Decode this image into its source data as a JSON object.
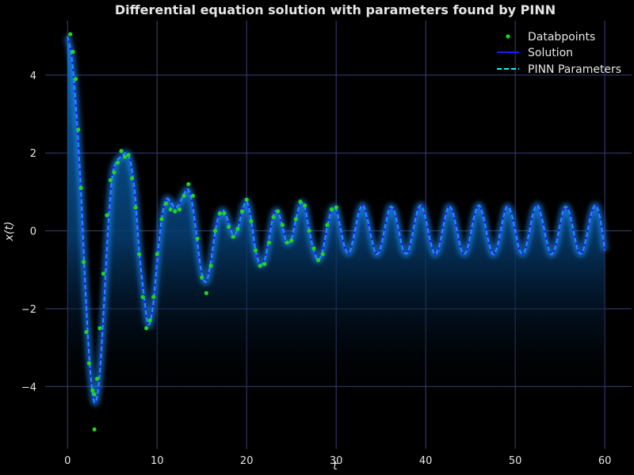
{
  "chart_data": {
    "type": "line",
    "title": "Differential equation solution with parameters found by PINN",
    "xlabel": "t",
    "ylabel": "x(t)",
    "xlim": [
      -2.5,
      63
    ],
    "ylim": [
      -5.6,
      5.4
    ],
    "xticks": [
      0,
      10,
      20,
      30,
      40,
      50,
      60
    ],
    "yticks": [
      -4,
      -2,
      0,
      2,
      4
    ],
    "xtick_labels": [
      "0",
      "10",
      "20",
      "30",
      "40",
      "50",
      "60"
    ],
    "ytick_labels": [
      "−4",
      "−2",
      "0",
      "2",
      "4"
    ],
    "grid": true,
    "legend_position": "top-right",
    "legend": [
      {
        "label": "Databpoints",
        "marker": "dot",
        "color": "#1ed61e"
      },
      {
        "label": "Solution",
        "style": "solid",
        "color": "#1a1aff"
      },
      {
        "label": "PINN Parameters",
        "style": "dashed",
        "color": "#00ffff"
      }
    ],
    "colors": {
      "background": "#000000",
      "grid": "#3a3f7a",
      "solution_glow": "#1e90ff",
      "pinn_dashed": "#1e90ff",
      "fill_top": "#0a5aa0",
      "fill_bottom": "#000000",
      "datapoints": "#1ed61e"
    },
    "series": [
      {
        "name": "Solution",
        "x": [
          0.0,
          0.5,
          1.0,
          1.5,
          2.0,
          2.5,
          3.0,
          3.5,
          4.0,
          4.5,
          5.0,
          5.5,
          6.0,
          6.5,
          7.0,
          7.5,
          8.0,
          8.5,
          9.0,
          9.5,
          10.0,
          10.5,
          11.0,
          11.5,
          12.0,
          12.5,
          13.0,
          13.5,
          14.0,
          14.5,
          15.0,
          15.5,
          16.0,
          16.5,
          17.0,
          17.5,
          18.0,
          18.5,
          19.0,
          19.5,
          20.0,
          20.5,
          21.0,
          21.5,
          22.0,
          22.5,
          23.0,
          23.5,
          24.0,
          24.5,
          25.0,
          25.5,
          26.0,
          26.5,
          27.0,
          27.5,
          28.0,
          28.5,
          29.0,
          29.5,
          30.0,
          30.5,
          31.0,
          31.5,
          32.0,
          32.5,
          33.0,
          33.5,
          34.0,
          34.5,
          35.0,
          35.5,
          36.0,
          36.5,
          37.0,
          37.5,
          38.0,
          38.5,
          39.0,
          39.5,
          40.0,
          40.5,
          41.0,
          41.5,
          42.0,
          42.5,
          43.0,
          43.5,
          44.0,
          44.5,
          45.0,
          45.5,
          46.0,
          46.5,
          47.0,
          47.5,
          48.0,
          48.5,
          49.0,
          49.5,
          50.0,
          50.5,
          51.0,
          51.5,
          52.0,
          52.5,
          53.0,
          53.5,
          54.0,
          54.5,
          55.0,
          55.5,
          56.0,
          56.5,
          57.0,
          57.5,
          58.0,
          58.5,
          59.0,
          59.5,
          60.0
        ],
        "y": [
          5.0,
          4.4,
          3.0,
          1.0,
          -1.5,
          -3.5,
          -4.4,
          -3.9,
          -2.2,
          0.0,
          1.4,
          1.8,
          1.9,
          2.0,
          1.8,
          1.0,
          -0.5,
          -1.6,
          -2.4,
          -2.0,
          -0.8,
          0.3,
          0.8,
          0.75,
          0.6,
          0.7,
          0.95,
          1.05,
          0.6,
          -0.3,
          -1.1,
          -1.3,
          -0.8,
          0.0,
          0.45,
          0.5,
          0.2,
          -0.1,
          0.05,
          0.5,
          0.75,
          0.3,
          -0.5,
          -0.85,
          -0.75,
          -0.2,
          0.4,
          0.5,
          0.1,
          -0.3,
          -0.2,
          0.3,
          0.7,
          0.6,
          0.0,
          -0.5,
          -0.75,
          -0.5,
          0.1,
          0.55,
          0.55,
          0.05,
          -0.45,
          -0.55,
          -0.1,
          0.45,
          0.65,
          0.3,
          -0.25,
          -0.6,
          -0.4,
          0.15,
          0.6,
          0.5,
          0.0,
          -0.5,
          -0.55,
          -0.1,
          0.45,
          0.65,
          0.3,
          -0.25,
          -0.6,
          -0.4,
          0.15,
          0.6,
          0.5,
          0.0,
          -0.5,
          -0.55,
          -0.1,
          0.45,
          0.65,
          0.3,
          -0.25,
          -0.6,
          -0.4,
          0.15,
          0.6,
          0.5,
          0.0,
          -0.5,
          -0.55,
          -0.1,
          0.45,
          0.65,
          0.3,
          -0.25,
          -0.6,
          -0.4,
          0.15,
          0.6,
          0.5,
          0.0,
          -0.5,
          -0.55,
          -0.1,
          0.45,
          0.65,
          0.3,
          -0.5
        ]
      },
      {
        "name": "Databpoints",
        "x": [
          0.3,
          0.6,
          0.9,
          1.2,
          1.5,
          1.8,
          2.1,
          2.4,
          2.8,
          3.0,
          3.3,
          3.6,
          4.0,
          4.4,
          4.8,
          5.2,
          5.6,
          6.0,
          6.4,
          6.8,
          7.2,
          7.6,
          8.0,
          8.4,
          8.8,
          9.2,
          9.6,
          10.0,
          10.5,
          11.0,
          11.5,
          12.0,
          12.5,
          13.0,
          13.5,
          14.0,
          14.5,
          15.0,
          15.5,
          16.0,
          16.5,
          17.0,
          17.5,
          18.0,
          18.5,
          19.0,
          19.5,
          20.0,
          20.5,
          21.0,
          21.5,
          22.0,
          22.5,
          23.0,
          23.5,
          24.0,
          24.5,
          25.0,
          25.5,
          26.0,
          26.5,
          27.0,
          27.5,
          28.0,
          28.5,
          29.0,
          29.5,
          30.0,
          3.0
        ],
        "y": [
          5.05,
          4.6,
          3.9,
          2.6,
          1.1,
          -0.8,
          -2.6,
          -3.4,
          -4.1,
          -4.2,
          -3.8,
          -2.5,
          -1.1,
          0.4,
          1.3,
          1.5,
          1.75,
          2.05,
          1.9,
          1.95,
          1.35,
          0.6,
          -0.6,
          -1.7,
          -2.5,
          -2.3,
          -1.7,
          -0.6,
          0.3,
          0.7,
          0.55,
          0.5,
          0.55,
          0.9,
          1.2,
          0.9,
          -0.2,
          -1.2,
          -1.6,
          -0.9,
          0.0,
          0.45,
          0.45,
          0.1,
          -0.15,
          0.05,
          0.5,
          0.8,
          0.25,
          -0.5,
          -0.9,
          -0.85,
          -0.3,
          0.35,
          0.5,
          0.15,
          -0.3,
          -0.25,
          0.3,
          0.75,
          0.65,
          0.0,
          -0.45,
          -0.75,
          -0.6,
          0.15,
          0.55,
          0.6,
          -5.1
        ]
      }
    ]
  }
}
